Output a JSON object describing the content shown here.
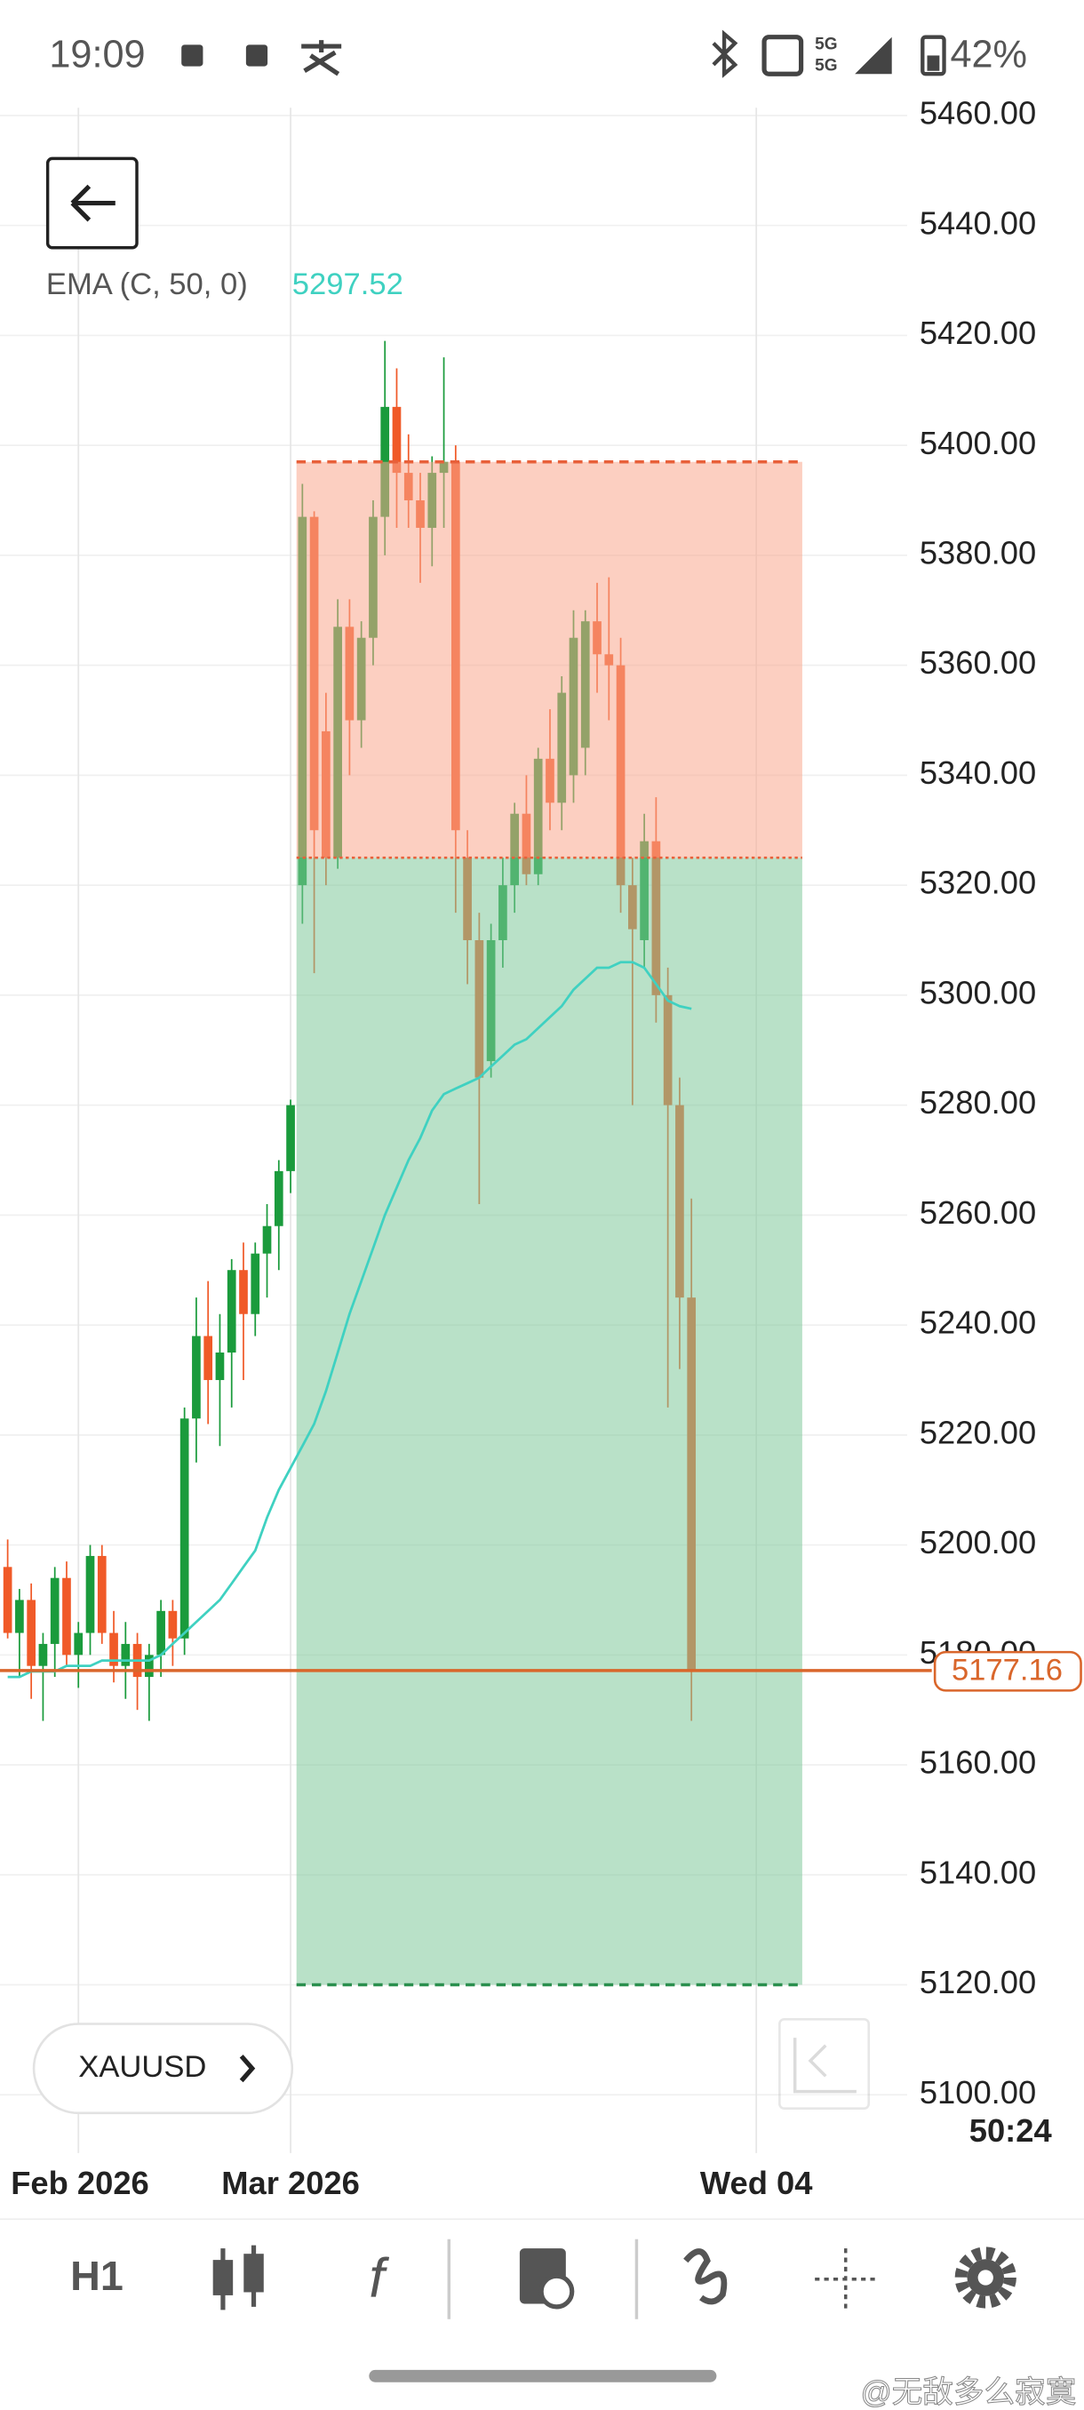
{
  "status_bar": {
    "time": "19:09",
    "network": "5G",
    "battery": "42%"
  },
  "chart_data": {
    "type": "candlestick",
    "symbol": "XAUUSD",
    "up_color": "#1a9b3c",
    "down_color": "#f05a28",
    "xlim": [
      -0.65,
      76.3
    ],
    "xticks": [
      {
        "value": 6,
        "label": "Feb 2026"
      },
      {
        "value": 24,
        "label": "Mar 2026"
      },
      {
        "value": 63.5,
        "label": "Wed 04"
      }
    ],
    "ylim": [
      5089.4,
      5461.4
    ],
    "yticks": [
      {
        "value": 5100,
        "label": "5100.00"
      },
      {
        "value": 5120,
        "label": "5120.00"
      },
      {
        "value": 5140,
        "label": "5140.00"
      },
      {
        "value": 5160,
        "label": "5160.00"
      },
      {
        "value": 5180,
        "label": "5180.00"
      },
      {
        "value": 5200,
        "label": "5200.00"
      },
      {
        "value": 5220,
        "label": "5220.00"
      },
      {
        "value": 5240,
        "label": "5240.00"
      },
      {
        "value": 5260,
        "label": "5260.00"
      },
      {
        "value": 5280,
        "label": "5280.00"
      },
      {
        "value": 5300,
        "label": "5300.00"
      },
      {
        "value": 5320,
        "label": "5320.00"
      },
      {
        "value": 5340,
        "label": "5340.00"
      },
      {
        "value": 5360,
        "label": "5360.00"
      },
      {
        "value": 5380,
        "label": "5380.00"
      },
      {
        "value": 5400,
        "label": "5400.00"
      },
      {
        "value": 5420,
        "label": "5420.00"
      },
      {
        "value": 5440,
        "label": "5440.00"
      },
      {
        "value": 5460,
        "label": "5460.00"
      }
    ],
    "grid": true,
    "candles": [
      {
        "open": 5196,
        "high": 5201,
        "low": 5183,
        "close": 5184
      },
      {
        "open": 5184,
        "high": 5192,
        "low": 5176,
        "close": 5190
      },
      {
        "open": 5190,
        "high": 5193,
        "low": 5172,
        "close": 5178
      },
      {
        "open": 5178,
        "high": 5184,
        "low": 5168,
        "close": 5182
      },
      {
        "open": 5182,
        "high": 5196,
        "low": 5176,
        "close": 5194
      },
      {
        "open": 5194,
        "high": 5197,
        "low": 5178,
        "close": 5180
      },
      {
        "open": 5180,
        "high": 5186,
        "low": 5174,
        "close": 5184
      },
      {
        "open": 5184,
        "high": 5200,
        "low": 5180,
        "close": 5198
      },
      {
        "open": 5198,
        "high": 5200,
        "low": 5182,
        "close": 5184
      },
      {
        "open": 5184,
        "high": 5188,
        "low": 5175,
        "close": 5178
      },
      {
        "open": 5178,
        "high": 5186,
        "low": 5172,
        "close": 5182
      },
      {
        "open": 5182,
        "high": 5184,
        "low": 5170,
        "close": 5176
      },
      {
        "open": 5176,
        "high": 5182,
        "low": 5168,
        "close": 5180
      },
      {
        "open": 5180,
        "high": 5190,
        "low": 5176,
        "close": 5188
      },
      {
        "open": 5188,
        "high": 5190,
        "low": 5178,
        "close": 5183
      },
      {
        "open": 5183,
        "high": 5225,
        "low": 5180,
        "close": 5223
      },
      {
        "open": 5223,
        "high": 5245,
        "low": 5215,
        "close": 5238
      },
      {
        "open": 5238,
        "high": 5248,
        "low": 5222,
        "close": 5230
      },
      {
        "open": 5230,
        "high": 5242,
        "low": 5218,
        "close": 5235
      },
      {
        "open": 5235,
        "high": 5252,
        "low": 5225,
        "close": 5250
      },
      {
        "open": 5250,
        "high": 5255,
        "low": 5230,
        "close": 5242
      },
      {
        "open": 5242,
        "high": 5255,
        "low": 5238,
        "close": 5253
      },
      {
        "open": 5253,
        "high": 5262,
        "low": 5245,
        "close": 5258
      },
      {
        "open": 5258,
        "high": 5270,
        "low": 5250,
        "close": 5268
      },
      {
        "open": 5268,
        "high": 5281,
        "low": 5264,
        "close": 5280
      },
      {
        "open": 5320,
        "high": 5393,
        "low": 5313,
        "close": 5387
      },
      {
        "open": 5387,
        "high": 5388,
        "low": 5304,
        "close": 5330
      },
      {
        "open": 5348,
        "high": 5355,
        "low": 5320,
        "close": 5325
      },
      {
        "open": 5325,
        "high": 5372,
        "low": 5323,
        "close": 5367
      },
      {
        "open": 5367,
        "high": 5372,
        "low": 5340,
        "close": 5350
      },
      {
        "open": 5350,
        "high": 5368,
        "low": 5345,
        "close": 5365
      },
      {
        "open": 5365,
        "high": 5390,
        "low": 5360,
        "close": 5387
      },
      {
        "open": 5387,
        "high": 5419,
        "low": 5380,
        "close": 5407
      },
      {
        "open": 5407,
        "high": 5414,
        "low": 5385,
        "close": 5395
      },
      {
        "open": 5395,
        "high": 5402,
        "low": 5385,
        "close": 5390
      },
      {
        "open": 5390,
        "high": 5395,
        "low": 5375,
        "close": 5385
      },
      {
        "open": 5385,
        "high": 5398,
        "low": 5378,
        "close": 5395
      },
      {
        "open": 5395,
        "high": 5416,
        "low": 5385,
        "close": 5397
      },
      {
        "open": 5397,
        "high": 5400,
        "low": 5315,
        "close": 5330
      },
      {
        "open": 5325,
        "high": 5330,
        "low": 5302,
        "close": 5310
      },
      {
        "open": 5310,
        "high": 5315,
        "low": 5262,
        "close": 5285
      },
      {
        "open": 5288,
        "high": 5313,
        "low": 5285,
        "close": 5310
      },
      {
        "open": 5310,
        "high": 5325,
        "low": 5305,
        "close": 5320
      },
      {
        "open": 5320,
        "high": 5335,
        "low": 5315,
        "close": 5333
      },
      {
        "open": 5333,
        "high": 5340,
        "low": 5320,
        "close": 5322
      },
      {
        "open": 5322,
        "high": 5345,
        "low": 5320,
        "close": 5343
      },
      {
        "open": 5343,
        "high": 5352,
        "low": 5330,
        "close": 5335
      },
      {
        "open": 5335,
        "high": 5358,
        "low": 5330,
        "close": 5355
      },
      {
        "open": 5340,
        "high": 5370,
        "low": 5335,
        "close": 5365
      },
      {
        "open": 5345,
        "high": 5370,
        "low": 5340,
        "close": 5368
      },
      {
        "open": 5368,
        "high": 5375,
        "low": 5355,
        "close": 5362
      },
      {
        "open": 5362,
        "high": 5376,
        "low": 5350,
        "close": 5360
      },
      {
        "open": 5360,
        "high": 5365,
        "low": 5315,
        "close": 5320
      },
      {
        "open": 5320,
        "high": 5325,
        "low": 5280,
        "close": 5312
      },
      {
        "open": 5310,
        "high": 5333,
        "low": 5305,
        "close": 5328
      },
      {
        "open": 5328,
        "high": 5336,
        "low": 5295,
        "close": 5300
      },
      {
        "open": 5300,
        "high": 5305,
        "low": 5225,
        "close": 5280
      },
      {
        "open": 5280,
        "high": 5285,
        "low": 5232,
        "close": 5245
      },
      {
        "open": 5245,
        "high": 5263,
        "low": 5168,
        "close": 5177
      }
    ],
    "indicator": {
      "label": "EMA (C, 50, 0)",
      "color": "#3fd1c1",
      "values": [
        5176,
        5176,
        5177,
        5177,
        5177,
        5178,
        5178,
        5178,
        5179,
        5179,
        5179,
        5179,
        5179,
        5180,
        5182,
        5184,
        5186,
        5188,
        5190,
        5193,
        5196,
        5199,
        5205,
        5210,
        5214,
        5218,
        5222,
        5228,
        5235,
        5242,
        5248,
        5254,
        5260,
        5265,
        5270,
        5274,
        5279,
        5282,
        5283,
        5284,
        5285,
        5287,
        5289,
        5291,
        5292,
        5294,
        5296,
        5298,
        5301,
        5303,
        5305,
        5305,
        5306,
        5306,
        5305,
        5302,
        5299,
        5298,
        5297.52
      ]
    },
    "position": {
      "start": 24.5,
      "end": 67.4,
      "stop": 5397,
      "entry": 5325,
      "target": 5120,
      "stop_color": "#f9a88e",
      "target_color": "#7fc99b"
    },
    "current_price": 5177.16,
    "current_price_color": "#d9662b"
  },
  "countdown": "50:24",
  "toolbar": {
    "timeframe": "H1",
    "indicators": "f"
  },
  "watermark": "@无敌多么寂寞"
}
